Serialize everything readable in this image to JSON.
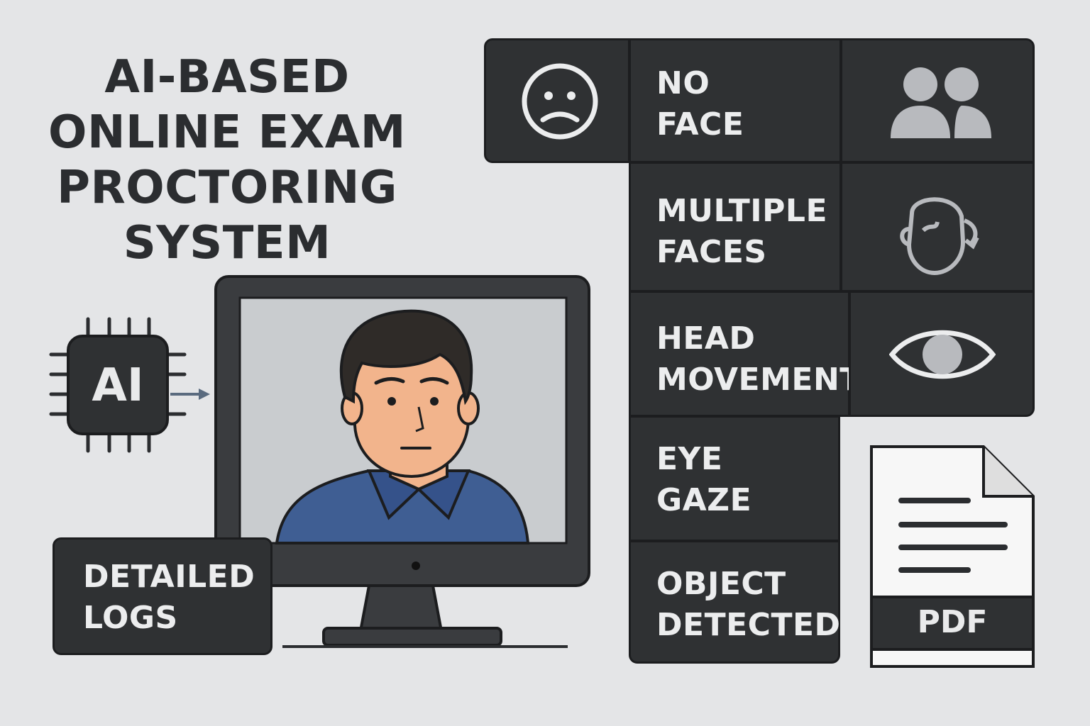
{
  "title": {
    "line1": "AI-BASED",
    "line2": "ONLINE EXAM",
    "line3": "PROCTORING",
    "line4": "SYSTEM"
  },
  "ai_chip": {
    "label": "AI"
  },
  "logs": {
    "line1": "DETAILED",
    "line2": "LOGS"
  },
  "features": {
    "no_face": {
      "line1": "NO",
      "line2": "FACE"
    },
    "multiple_faces": {
      "line1": "MULTIPLE",
      "line2": "FACES"
    },
    "head_movement": {
      "line1": "HEAD",
      "line2": "MOVEMENT"
    },
    "eye_gaze": {
      "line1": "EYE",
      "line2": "GAZE"
    },
    "object_detected": {
      "line1": "OBJECT",
      "line2": "DETECTED"
    }
  },
  "report": {
    "label": "PDF"
  },
  "icons": {
    "sad_face": "sad-face-icon",
    "people": "people-icon",
    "head_turn": "head-turn-icon",
    "eye": "eye-icon",
    "document": "pdf-document-icon"
  },
  "colors": {
    "background": "#e4e5e7",
    "tile": "#2f3133",
    "tile_border": "#1c1d1f",
    "text_light": "#ecedee",
    "title_text": "#2b2d30",
    "skin": "#f2b48c",
    "hair": "#2f2b28",
    "shirt": "#3f5e93",
    "screen": "#c9cccf",
    "icon_gray": "#b8babe"
  }
}
